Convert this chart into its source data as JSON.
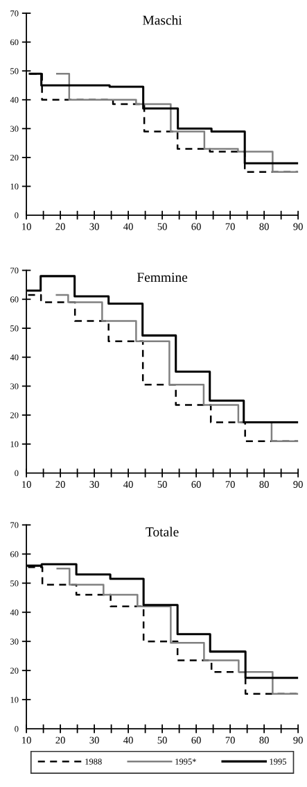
{
  "chart_data": [
    {
      "type": "step",
      "title": "Maschi",
      "xlim": [
        10,
        90
      ],
      "ylim": [
        0,
        70
      ],
      "legend": false,
      "grid": false,
      "xticks": [
        10,
        {
          "value": 15,
          "label": null
        },
        20,
        {
          "value": 25,
          "label": null
        },
        30,
        {
          "value": 35,
          "label": null
        },
        40,
        {
          "value": 45,
          "label": null
        },
        50,
        {
          "value": 55,
          "label": null
        },
        60,
        {
          "value": 65,
          "label": null
        },
        70,
        {
          "value": 75,
          "label": null
        },
        80,
        {
          "value": 85,
          "label": null
        },
        90
      ],
      "yticks": [
        0,
        10,
        20,
        30,
        40,
        50,
        60,
        70
      ],
      "series": [
        {
          "color": "#000000",
          "line_style": "dashed",
          "x": [
            11,
            14.6,
            35.5,
            44.7,
            54.5,
            64,
            74.3,
            90
          ],
          "values": [
            49,
            40,
            38.5,
            29,
            23,
            22,
            15,
            15
          ]
        },
        {
          "color": "#808080",
          "line_style": "solid",
          "x": [
            19,
            22.6,
            42.3,
            52.5,
            62.4,
            72.3,
            82.5,
            90
          ],
          "values": [
            49,
            40,
            38.5,
            29,
            23,
            22,
            15,
            15
          ]
        },
        {
          "color": "#000000",
          "line_style": "solid",
          "x": [
            11,
            14.4,
            34.5,
            44.4,
            54.6,
            64.5,
            74.3,
            90
          ],
          "values": [
            49,
            45,
            44.5,
            37,
            30,
            29,
            18,
            18
          ]
        }
      ]
    },
    {
      "type": "step",
      "title": "Femmine",
      "xlim": [
        10,
        90
      ],
      "ylim": [
        0,
        70
      ],
      "legend": false,
      "grid": false,
      "xticks": [
        10,
        {
          "value": 15,
          "label": null
        },
        20,
        {
          "value": 25,
          "label": null
        },
        30,
        {
          "value": 35,
          "label": null
        },
        40,
        {
          "value": 45,
          "label": null
        },
        50,
        {
          "value": 55,
          "label": null
        },
        60,
        {
          "value": 65,
          "label": null
        },
        70,
        {
          "value": 75,
          "label": null
        },
        80,
        {
          "value": 85,
          "label": null
        },
        90
      ],
      "yticks": [
        0,
        10,
        20,
        30,
        40,
        50,
        60,
        70
      ],
      "series": [
        {
          "color": "#000000",
          "line_style": "dashed",
          "x": [
            10.5,
            14.3,
            24.3,
            34.2,
            44.3,
            54,
            64.3,
            74.4,
            90
          ],
          "values": [
            61.5,
            59,
            52.5,
            45.5,
            30.5,
            23.5,
            17.5,
            11,
            11
          ]
        },
        {
          "color": "#808080",
          "line_style": "solid",
          "x": [
            18.9,
            22.3,
            32.3,
            42.3,
            52.1,
            62.2,
            72.4,
            82.2,
            90
          ],
          "values": [
            61.5,
            59,
            52.5,
            45.5,
            30.5,
            23.5,
            17.5,
            11,
            11
          ]
        },
        {
          "color": "#000000",
          "line_style": "solid",
          "x": [
            10.5,
            14.2,
            24.2,
            34.2,
            44.2,
            54,
            64,
            74,
            90
          ],
          "values": [
            63,
            68,
            61,
            58.5,
            47.5,
            35,
            25,
            17.5,
            17.5
          ]
        }
      ]
    },
    {
      "type": "step",
      "title": "Totale",
      "xlim": [
        10,
        90
      ],
      "ylim": [
        0,
        70
      ],
      "legend": "bottom",
      "grid": false,
      "xticks": [
        10,
        {
          "value": 15,
          "label": null
        },
        20,
        {
          "value": 25,
          "label": null
        },
        30,
        {
          "value": 35,
          "label": null
        },
        40,
        {
          "value": 45,
          "label": null
        },
        50,
        {
          "value": 55,
          "label": null
        },
        60,
        {
          "value": 65,
          "label": null
        },
        70,
        {
          "value": 75,
          "label": null
        },
        80,
        {
          "value": 85,
          "label": null
        },
        90
      ],
      "yticks": [
        0,
        10,
        20,
        30,
        40,
        50,
        60,
        70
      ],
      "series": [
        {
          "name": "1988",
          "color": "#000000",
          "line_style": "dashed",
          "x": [
            10.5,
            14.7,
            24.7,
            34.8,
            44.5,
            54.5,
            64.5,
            74.5,
            90
          ],
          "values": [
            55.5,
            49.5,
            46,
            42,
            30,
            23.5,
            19.5,
            12,
            12
          ]
        },
        {
          "name": "1995*",
          "color": "#808080",
          "line_style": "solid",
          "x": [
            19.1,
            22.7,
            32.7,
            42.7,
            52.5,
            62.3,
            72.5,
            82.5,
            90
          ],
          "values": [
            55,
            49.5,
            46,
            42,
            29.5,
            23.5,
            19.5,
            12,
            12
          ]
        },
        {
          "name": "1995",
          "color": "#000000",
          "line_style": "solid",
          "x": [
            10.5,
            14.5,
            24.7,
            34.7,
            44.5,
            54.5,
            64.1,
            74.5,
            90
          ],
          "values": [
            56,
            56.5,
            53,
            51.5,
            42.5,
            32.5,
            26.5,
            17.5,
            17.5
          ]
        }
      ]
    }
  ]
}
